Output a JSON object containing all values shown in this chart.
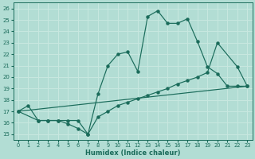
{
  "xlabel": "Humidex (Indice chaleur)",
  "bg_color": "#b2ddd4",
  "grid_color": "#c8e8e0",
  "line_color": "#1a6b5a",
  "xlim": [
    -0.5,
    23.5
  ],
  "ylim": [
    14.5,
    26.5
  ],
  "xticks": [
    0,
    1,
    2,
    3,
    4,
    5,
    6,
    7,
    8,
    9,
    10,
    11,
    12,
    13,
    14,
    15,
    16,
    17,
    18,
    19,
    20,
    21,
    22,
    23
  ],
  "yticks": [
    15,
    16,
    17,
    18,
    19,
    20,
    21,
    22,
    23,
    24,
    25,
    26
  ],
  "line1_x": [
    0,
    1,
    2,
    3,
    4,
    5,
    6,
    7,
    8,
    9,
    10,
    11,
    12,
    13,
    14,
    15,
    16,
    17,
    18,
    19,
    20,
    21,
    22,
    23
  ],
  "line1_y": [
    17.0,
    17.5,
    16.2,
    16.2,
    16.2,
    15.9,
    15.5,
    15.0,
    18.5,
    21.0,
    22.0,
    22.2,
    20.5,
    25.3,
    25.8,
    24.7,
    24.7,
    25.1,
    23.1,
    20.9,
    20.3,
    19.2,
    19.2,
    19.2
  ],
  "line2_x": [
    0,
    2,
    3,
    4,
    5,
    6,
    7,
    8,
    9,
    10,
    11,
    12,
    13,
    14,
    15,
    16,
    17,
    18,
    19,
    20,
    22,
    23
  ],
  "line2_y": [
    17.0,
    16.2,
    16.2,
    16.2,
    16.2,
    16.2,
    15.0,
    16.5,
    17.0,
    17.5,
    17.8,
    18.1,
    18.4,
    18.7,
    19.0,
    19.4,
    19.7,
    20.0,
    20.4,
    23.0,
    20.9,
    19.2
  ],
  "line3_x": [
    0,
    23
  ],
  "line3_y": [
    17.0,
    19.2
  ]
}
